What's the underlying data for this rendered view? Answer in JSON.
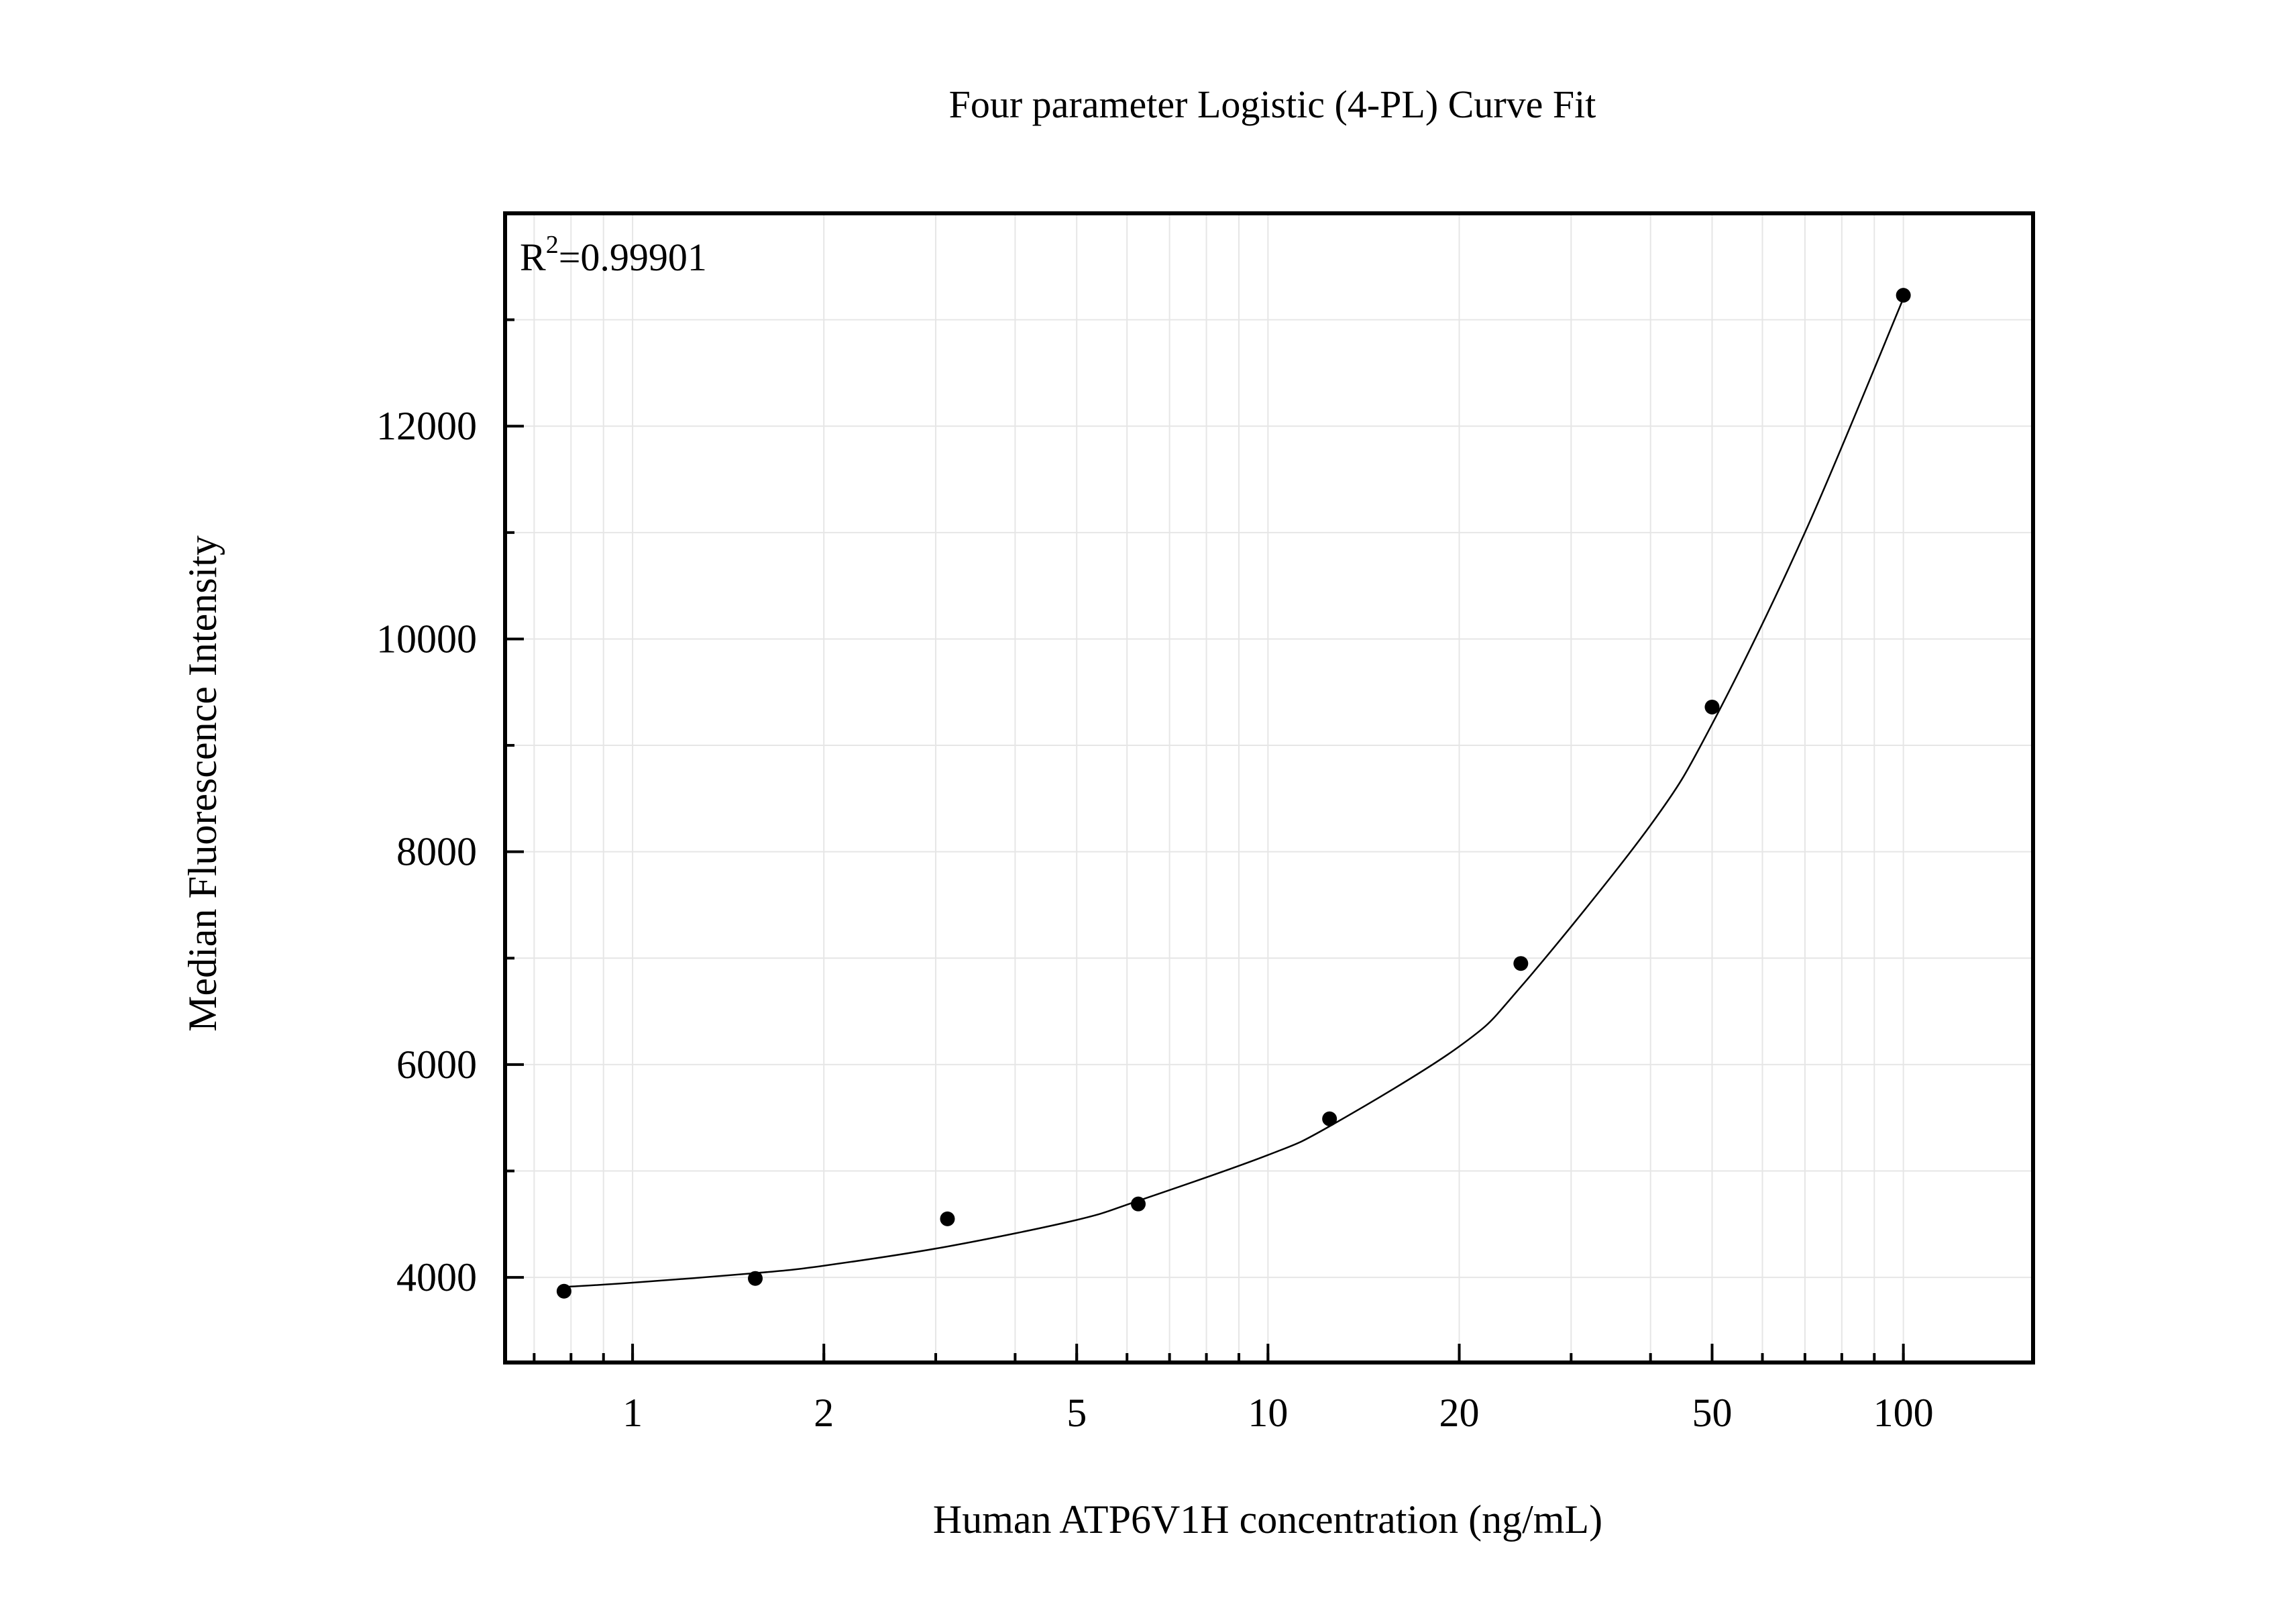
{
  "chart_data": {
    "type": "scatter",
    "title": "Four parameter Logistic (4-PL) Curve Fit",
    "xlabel": "Human ATP6V1H concentration (ng/mL)",
    "ylabel": "Median Fluorescence Intensity",
    "x_scale": "log",
    "xlim": [
      0.63,
      160
    ],
    "ylim": [
      3200,
      14000
    ],
    "grid": true,
    "x_ticks": [
      {
        "value": 1,
        "label": "1"
      },
      {
        "value": 2,
        "label": "2"
      },
      {
        "value": 5,
        "label": "5"
      },
      {
        "value": 10,
        "label": "10"
      },
      {
        "value": 20,
        "label": "20"
      },
      {
        "value": 50,
        "label": "50"
      },
      {
        "value": 100,
        "label": "100"
      }
    ],
    "y_ticks": [
      {
        "value": 4000,
        "label": "4000"
      },
      {
        "value": 6000,
        "label": "6000"
      },
      {
        "value": 8000,
        "label": "8000"
      },
      {
        "value": 10000,
        "label": "10000"
      },
      {
        "value": 12000,
        "label": "12000"
      }
    ],
    "annotation": {
      "base": "R",
      "superscript": "2",
      "value": "=0.99901",
      "position": "top-left"
    },
    "series": [
      {
        "kind": "points",
        "x": [
          0.78,
          1.56,
          3.13,
          6.25,
          12.5,
          25,
          50,
          100
        ],
        "y": [
          3870,
          3990,
          4550,
          4690,
          5490,
          6950,
          9360,
          13230
        ]
      },
      {
        "kind": "fit-curve",
        "x": [
          0.78,
          1,
          1.56,
          2,
          3.13,
          5,
          6.25,
          10,
          12.5,
          20,
          25,
          40,
          50,
          70,
          100
        ],
        "y": [
          3910,
          3950,
          4040,
          4110,
          4290,
          4540,
          4720,
          5150,
          5420,
          6170,
          6730,
          8250,
          9200,
          11000,
          13200
        ]
      }
    ],
    "colors": {
      "points": "#000000",
      "curve": "#000000",
      "grid": "#e6e6e6",
      "frame": "#000000"
    }
  }
}
